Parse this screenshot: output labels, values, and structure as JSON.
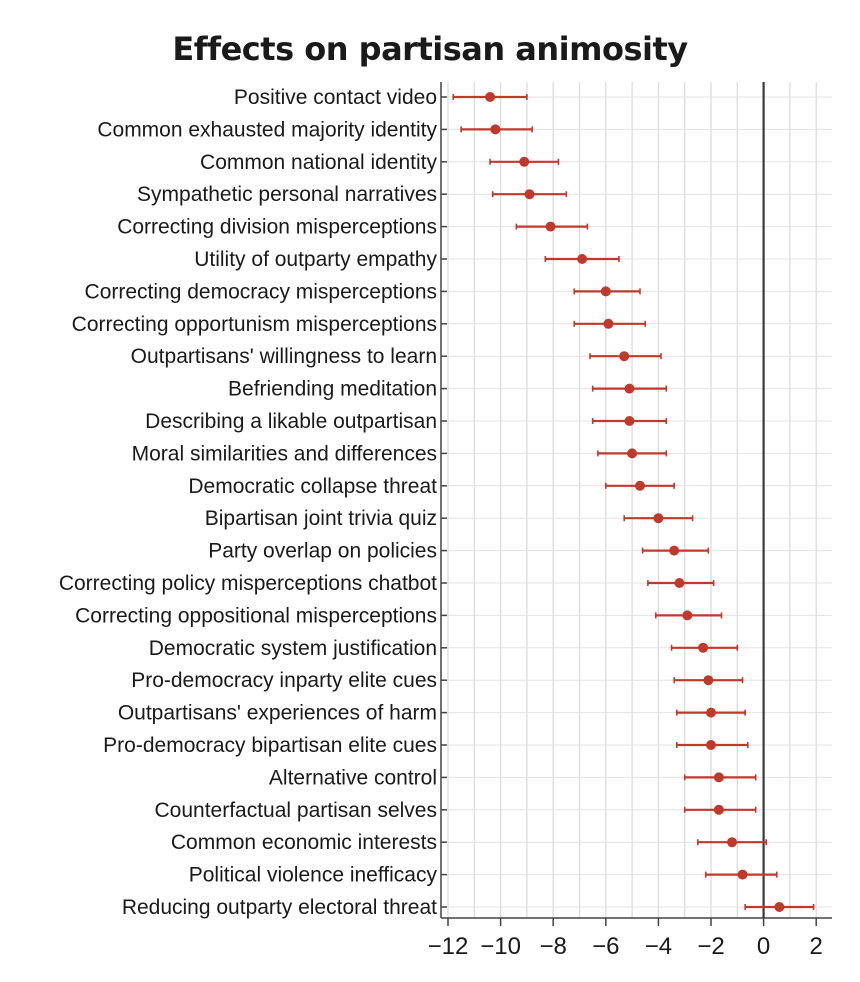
{
  "chart_data": {
    "type": "scatter",
    "title": "Effects on partisan animosity",
    "xlabel": "",
    "ylabel": "",
    "xlim": [
      -12.5,
      2.0
    ],
    "xticks": [
      -12,
      -10,
      -8,
      -6,
      -4,
      -2,
      0,
      2
    ],
    "xtick_labels": [
      "−12",
      "−10",
      "−8",
      "−6",
      "−4",
      "−2",
      "0",
      "2"
    ],
    "grid": true,
    "reference_line": 0,
    "color": "#c0392b",
    "categories": [
      "Positive contact video",
      "Common exhausted majority identity",
      "Common national identity",
      "Sympathetic personal narratives",
      "Correcting division misperceptions",
      "Utility of outparty empathy",
      "Correcting democracy misperceptions",
      "Correcting opportunism misperceptions",
      "Outpartisans' willingness to learn",
      "Befriending meditation",
      "Describing a likable outpartisan",
      "Moral similarities and differences",
      "Democratic collapse threat",
      "Bipartisan joint trivia quiz",
      "Party overlap on policies",
      "Correcting policy misperceptions chatbot",
      "Correcting oppositional misperceptions",
      "Democratic system justification",
      "Pro-democracy inparty elite cues",
      "Outpartisans' experiences of harm",
      "Pro-democracy bipartisan elite cues",
      "Alternative control",
      "Counterfactual partisan selves",
      "Common economic interests",
      "Political violence inefficacy",
      "Reducing outparty electoral threat"
    ],
    "estimates": [
      -10.4,
      -10.2,
      -9.1,
      -8.9,
      -8.1,
      -6.9,
      -6.0,
      -5.9,
      -5.3,
      -5.1,
      -5.1,
      -5.0,
      -4.7,
      -4.0,
      -3.4,
      -3.2,
      -2.9,
      -2.3,
      -2.1,
      -2.0,
      -2.0,
      -1.7,
      -1.7,
      -1.2,
      -0.8,
      0.6
    ],
    "ci_low": [
      -11.8,
      -11.5,
      -10.4,
      -10.3,
      -9.4,
      -8.3,
      -7.2,
      -7.2,
      -6.6,
      -6.5,
      -6.5,
      -6.3,
      -6.0,
      -5.3,
      -4.6,
      -4.4,
      -4.1,
      -3.5,
      -3.4,
      -3.3,
      -3.3,
      -3.0,
      -3.0,
      -2.5,
      -2.2,
      -0.7
    ],
    "ci_high": [
      -9.0,
      -8.8,
      -7.8,
      -7.5,
      -6.7,
      -5.5,
      -4.7,
      -4.5,
      -3.9,
      -3.7,
      -3.7,
      -3.7,
      -3.4,
      -2.7,
      -2.1,
      -1.9,
      -1.6,
      -1.0,
      -0.8,
      -0.7,
      -0.6,
      -0.3,
      -0.3,
      0.1,
      0.5,
      1.9
    ]
  }
}
